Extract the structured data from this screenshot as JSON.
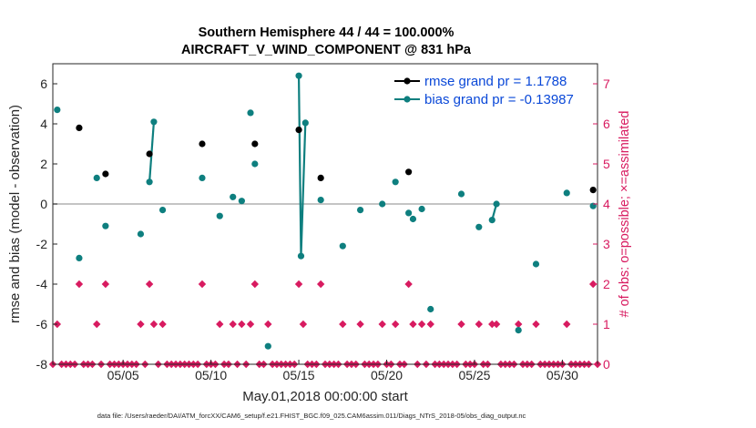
{
  "chart_data": {
    "type": "line",
    "title": "Southern Hemisphere 44 / 44 = 100.000%",
    "subtitle": "AIRCRAFT_V_WIND_COMPONENT @ 831 hPa",
    "xlabel": "May.01,2018 00:00:00 start",
    "ylabel": "rmse and bias (model - observation)",
    "ylabel_right": "# of obs: o=possible; ×=assimilated",
    "footer": "data file: /Users/raeder/DAI/ATM_forcXX/CAM6_setup/f.e21.FHIST_BGC.f09_025.CAM6assim.011/Diags_NTrS_2018-05/obs_diag_output.nc",
    "xlim": [
      1,
      32
    ],
    "ylim": [
      -8,
      7
    ],
    "ylim_right": [
      0,
      7.5
    ],
    "xticks": [
      5,
      10,
      15,
      20,
      25,
      30
    ],
    "xtick_labels": [
      "05/05",
      "05/10",
      "05/15",
      "05/20",
      "05/25",
      "05/30"
    ],
    "yticks": [
      -8,
      -6,
      -4,
      -2,
      0,
      2,
      4,
      6
    ],
    "yticks_right": [
      0,
      1,
      2,
      3,
      4,
      5,
      6,
      7
    ],
    "legend": [
      {
        "label": "rmse grand pr = 1.1788",
        "color": "#000000"
      },
      {
        "label": "bias grand pr = -0.13987",
        "color": "#0e7f7f"
      }
    ],
    "colors": {
      "rmse": "#000000",
      "bias": "#0e7f7f",
      "count": "#d81b60",
      "zero_line": "#b0b0b0"
    },
    "rmse_points": [
      {
        "x": 2.5,
        "y": 3.8
      },
      {
        "x": 4.0,
        "y": 1.5
      },
      {
        "x": 6.5,
        "y": 2.5
      },
      {
        "x": 9.5,
        "y": 3.0
      },
      {
        "x": 12.5,
        "y": 3.0
      },
      {
        "x": 15.0,
        "y": 3.7
      },
      {
        "x": 16.25,
        "y": 1.3
      },
      {
        "x": 21.25,
        "y": 1.6
      },
      {
        "x": 31.75,
        "y": 0.7
      }
    ],
    "bias_points": [
      {
        "x": 1.25,
        "y": 4.7
      },
      {
        "x": 2.5,
        "y": -2.7
      },
      {
        "x": 3.5,
        "y": 1.3
      },
      {
        "x": 4.0,
        "y": -1.1
      },
      {
        "x": 6.0,
        "y": -1.5
      },
      {
        "x": 6.5,
        "y": 1.1
      },
      {
        "x": 6.75,
        "y": 4.1
      },
      {
        "x": 7.25,
        "y": -0.3
      },
      {
        "x": 9.5,
        "y": 1.3
      },
      {
        "x": 10.5,
        "y": -0.6
      },
      {
        "x": 11.25,
        "y": 0.35
      },
      {
        "x": 11.75,
        "y": 0.15
      },
      {
        "x": 12.25,
        "y": 4.55
      },
      {
        "x": 12.5,
        "y": 2.0
      },
      {
        "x": 13.25,
        "y": -7.1
      },
      {
        "x": 15.0,
        "y": 6.4
      },
      {
        "x": 15.125,
        "y": -2.6
      },
      {
        "x": 15.375,
        "y": 4.05
      },
      {
        "x": 16.25,
        "y": 0.2
      },
      {
        "x": 17.5,
        "y": -2.1
      },
      {
        "x": 18.5,
        "y": -0.3
      },
      {
        "x": 19.75,
        "y": 0.0
      },
      {
        "x": 20.5,
        "y": 1.1
      },
      {
        "x": 21.25,
        "y": -0.45
      },
      {
        "x": 21.5,
        "y": -0.75
      },
      {
        "x": 22.0,
        "y": -0.25
      },
      {
        "x": 22.5,
        "y": -5.25
      },
      {
        "x": 24.25,
        "y": 0.5
      },
      {
        "x": 25.25,
        "y": -1.15
      },
      {
        "x": 26.0,
        "y": -0.8
      },
      {
        "x": 26.25,
        "y": 0.0
      },
      {
        "x": 27.5,
        "y": -6.3
      },
      {
        "x": 28.5,
        "y": -3.0
      },
      {
        "x": 30.25,
        "y": 0.55
      },
      {
        "x": 31.75,
        "y": -0.1
      }
    ],
    "bias_segments": [
      [
        5,
        6
      ],
      [
        15,
        16,
        17
      ],
      [
        29,
        30
      ]
    ],
    "obs_counts": [
      {
        "x": 1.0,
        "n": 0
      },
      {
        "x": 1.25,
        "n": 1
      },
      {
        "x": 1.5,
        "n": 0
      },
      {
        "x": 1.75,
        "n": 0
      },
      {
        "x": 2.0,
        "n": 0
      },
      {
        "x": 2.25,
        "n": 0
      },
      {
        "x": 2.5,
        "n": 2
      },
      {
        "x": 2.75,
        "n": 0
      },
      {
        "x": 3.0,
        "n": 0
      },
      {
        "x": 3.25,
        "n": 0
      },
      {
        "x": 3.5,
        "n": 1
      },
      {
        "x": 3.75,
        "n": 0
      },
      {
        "x": 4.0,
        "n": 2
      },
      {
        "x": 4.25,
        "n": 0
      },
      {
        "x": 4.5,
        "n": 0
      },
      {
        "x": 4.75,
        "n": 0
      },
      {
        "x": 5.0,
        "n": 0
      },
      {
        "x": 5.25,
        "n": 0
      },
      {
        "x": 5.5,
        "n": 0
      },
      {
        "x": 5.75,
        "n": 0
      },
      {
        "x": 6.0,
        "n": 1
      },
      {
        "x": 6.25,
        "n": 0
      },
      {
        "x": 6.5,
        "n": 2
      },
      {
        "x": 6.75,
        "n": 1
      },
      {
        "x": 7.0,
        "n": 0
      },
      {
        "x": 7.25,
        "n": 1
      },
      {
        "x": 7.5,
        "n": 0
      },
      {
        "x": 7.75,
        "n": 0
      },
      {
        "x": 8.0,
        "n": 0
      },
      {
        "x": 8.25,
        "n": 0
      },
      {
        "x": 8.5,
        "n": 0
      },
      {
        "x": 8.75,
        "n": 0
      },
      {
        "x": 9.0,
        "n": 0
      },
      {
        "x": 9.25,
        "n": 0
      },
      {
        "x": 9.5,
        "n": 2
      },
      {
        "x": 9.75,
        "n": 0
      },
      {
        "x": 10.0,
        "n": 0
      },
      {
        "x": 10.25,
        "n": 0
      },
      {
        "x": 10.5,
        "n": 1
      },
      {
        "x": 10.75,
        "n": 0
      },
      {
        "x": 11.0,
        "n": 0
      },
      {
        "x": 11.25,
        "n": 1
      },
      {
        "x": 11.5,
        "n": 0
      },
      {
        "x": 11.75,
        "n": 1
      },
      {
        "x": 12.0,
        "n": 0
      },
      {
        "x": 12.25,
        "n": 1
      },
      {
        "x": 12.5,
        "n": 2
      },
      {
        "x": 12.75,
        "n": 0
      },
      {
        "x": 13.0,
        "n": 0
      },
      {
        "x": 13.25,
        "n": 1
      },
      {
        "x": 13.5,
        "n": 0
      },
      {
        "x": 13.75,
        "n": 0
      },
      {
        "x": 14.0,
        "n": 0
      },
      {
        "x": 14.25,
        "n": 0
      },
      {
        "x": 14.5,
        "n": 0
      },
      {
        "x": 14.75,
        "n": 0
      },
      {
        "x": 15.0,
        "n": 2
      },
      {
        "x": 15.25,
        "n": 1
      },
      {
        "x": 15.5,
        "n": 0
      },
      {
        "x": 15.75,
        "n": 0
      },
      {
        "x": 16.0,
        "n": 0
      },
      {
        "x": 16.25,
        "n": 2
      },
      {
        "x": 16.5,
        "n": 0
      },
      {
        "x": 16.75,
        "n": 0
      },
      {
        "x": 17.0,
        "n": 0
      },
      {
        "x": 17.25,
        "n": 0
      },
      {
        "x": 17.5,
        "n": 1
      },
      {
        "x": 17.75,
        "n": 0
      },
      {
        "x": 18.0,
        "n": 0
      },
      {
        "x": 18.25,
        "n": 0
      },
      {
        "x": 18.5,
        "n": 1
      },
      {
        "x": 18.75,
        "n": 0
      },
      {
        "x": 19.0,
        "n": 0
      },
      {
        "x": 19.25,
        "n": 0
      },
      {
        "x": 19.5,
        "n": 0
      },
      {
        "x": 19.75,
        "n": 1
      },
      {
        "x": 20.0,
        "n": 0
      },
      {
        "x": 20.25,
        "n": 0
      },
      {
        "x": 20.5,
        "n": 1
      },
      {
        "x": 20.75,
        "n": 0
      },
      {
        "x": 21.0,
        "n": 0
      },
      {
        "x": 21.25,
        "n": 2
      },
      {
        "x": 21.5,
        "n": 1
      },
      {
        "x": 21.75,
        "n": 0
      },
      {
        "x": 22.0,
        "n": 1
      },
      {
        "x": 22.25,
        "n": 0
      },
      {
        "x": 22.5,
        "n": 1
      },
      {
        "x": 22.75,
        "n": 0
      },
      {
        "x": 23.0,
        "n": 0
      },
      {
        "x": 23.25,
        "n": 0
      },
      {
        "x": 23.5,
        "n": 0
      },
      {
        "x": 23.75,
        "n": 0
      },
      {
        "x": 24.0,
        "n": 0
      },
      {
        "x": 24.25,
        "n": 1
      },
      {
        "x": 24.5,
        "n": 0
      },
      {
        "x": 24.75,
        "n": 0
      },
      {
        "x": 25.0,
        "n": 0
      },
      {
        "x": 25.25,
        "n": 1
      },
      {
        "x": 25.5,
        "n": 0
      },
      {
        "x": 25.75,
        "n": 0
      },
      {
        "x": 26.0,
        "n": 1
      },
      {
        "x": 26.25,
        "n": 1
      },
      {
        "x": 26.5,
        "n": 0
      },
      {
        "x": 26.75,
        "n": 0
      },
      {
        "x": 27.0,
        "n": 0
      },
      {
        "x": 27.25,
        "n": 0
      },
      {
        "x": 27.5,
        "n": 1
      },
      {
        "x": 27.75,
        "n": 0
      },
      {
        "x": 28.0,
        "n": 0
      },
      {
        "x": 28.25,
        "n": 0
      },
      {
        "x": 28.5,
        "n": 1
      },
      {
        "x": 28.75,
        "n": 0
      },
      {
        "x": 29.0,
        "n": 0
      },
      {
        "x": 29.25,
        "n": 0
      },
      {
        "x": 29.5,
        "n": 0
      },
      {
        "x": 29.75,
        "n": 0
      },
      {
        "x": 30.0,
        "n": 0
      },
      {
        "x": 30.25,
        "n": 1
      },
      {
        "x": 30.5,
        "n": 0
      },
      {
        "x": 30.75,
        "n": 0
      },
      {
        "x": 31.0,
        "n": 0
      },
      {
        "x": 31.25,
        "n": 0
      },
      {
        "x": 31.5,
        "n": 0
      },
      {
        "x": 31.75,
        "n": 2
      },
      {
        "x": 32.0,
        "n": 0
      }
    ]
  }
}
